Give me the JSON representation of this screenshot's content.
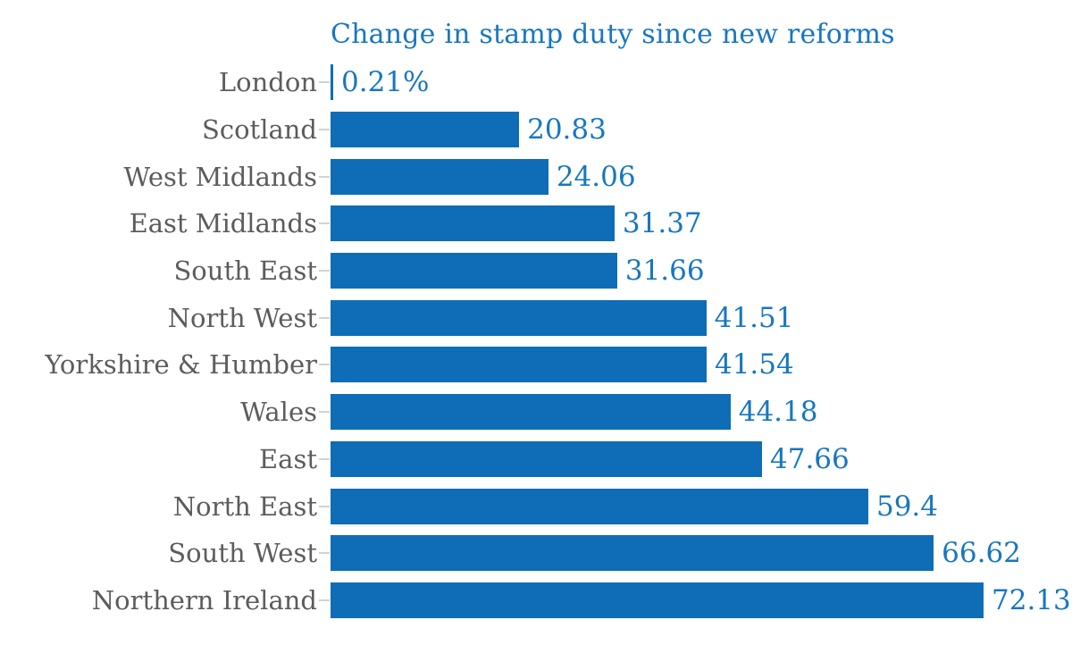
{
  "chart_data": {
    "type": "bar",
    "orientation": "horizontal",
    "title": "Change in stamp duty since new reforms",
    "categories": [
      "London",
      "Scotland",
      "West Midlands",
      "East Midlands",
      "South East",
      "North West",
      "Yorkshire & Humber",
      "Wales",
      "East",
      "North East",
      "South West",
      "Northern Ireland"
    ],
    "values": [
      0.21,
      20.83,
      24.06,
      31.37,
      31.66,
      41.51,
      41.54,
      44.18,
      47.66,
      59.4,
      66.62,
      72.13
    ],
    "value_labels": [
      "0.21%",
      "20.83",
      "24.06",
      "31.37",
      "31.66",
      "41.51",
      "41.54",
      "44.18",
      "47.66",
      "59.4",
      "66.62",
      "72.13"
    ],
    "xlabel": "",
    "ylabel": "",
    "xlim": [
      0,
      72.13
    ],
    "grid": false,
    "legend": false,
    "value_labels_position": "right-of-bar",
    "colors": {
      "bar": "#0e6db6",
      "title": "#1777c0",
      "value_label": "#1777c0",
      "category_label": "#5c5c5c",
      "tick": "#d2d2d2",
      "background": "#ffffff"
    }
  }
}
